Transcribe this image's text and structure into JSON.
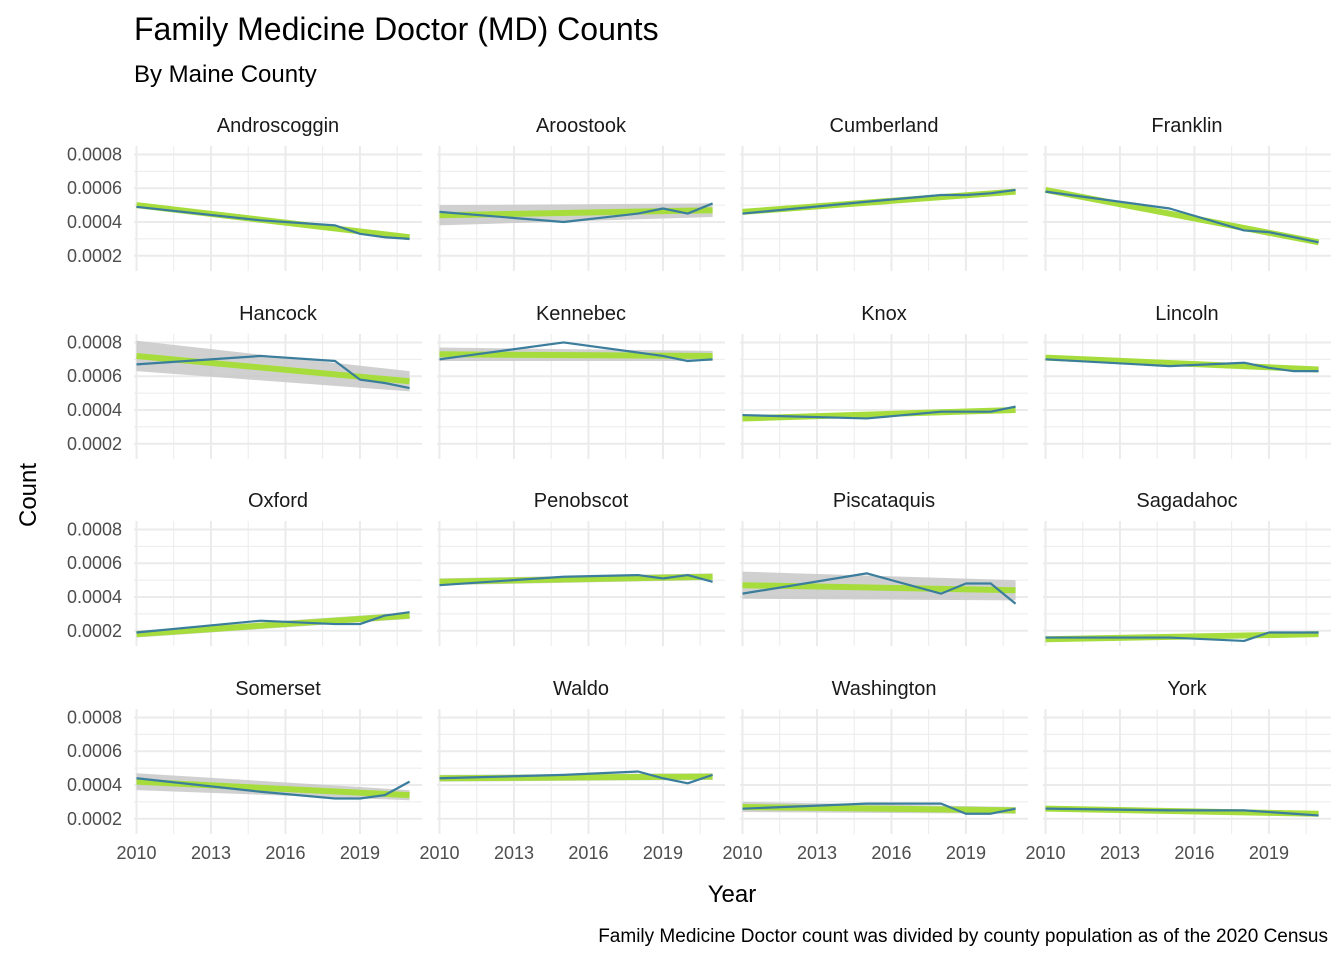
{
  "chart_data": {
    "type": "line",
    "title": "Family Medicine Doctor (MD) Counts",
    "subtitle": "By Maine County",
    "xlabel": "Year",
    "ylabel": "Count",
    "caption": "Family Medicine Doctor count was divided by county population as of the 2020 Census",
    "x_ticks": [
      "2010",
      "2013",
      "2016",
      "2019"
    ],
    "y_ticks": [
      "0.0002",
      "0.0004",
      "0.0006",
      "0.0008"
    ],
    "xlim": [
      2009.9,
      2021.5
    ],
    "ylim": [
      0.00011,
      0.00085
    ],
    "grid": true,
    "colors": {
      "line": "#3b7d9c",
      "trend": "#a6dd3c",
      "band": "#c8c8c8",
      "grid": "#ebebeb"
    },
    "years": [
      2010,
      2015,
      2018,
      2019,
      2020,
      2021
    ],
    "panels": [
      {
        "name": "Androscoggin",
        "values": [
          0.00049,
          0.00041,
          0.00038,
          0.00033,
          0.00031,
          0.0003
        ],
        "trend": [
          0.0005,
          0.00031
        ],
        "band": [
          1e-05,
          1e-05
        ]
      },
      {
        "name": "Aroostook",
        "values": [
          0.00046,
          0.0004,
          0.00045,
          0.00048,
          0.00045,
          0.00051
        ],
        "trend": [
          0.00044,
          0.00047
        ],
        "band": [
          6e-05,
          4e-05
        ]
      },
      {
        "name": "Cumberland",
        "values": [
          0.00045,
          0.00052,
          0.00056,
          0.00056,
          0.00057,
          0.00059
        ],
        "trend": [
          0.00046,
          0.00058
        ],
        "band": [
          1e-05,
          1e-05
        ]
      },
      {
        "name": "Franklin",
        "values": [
          0.00058,
          0.00048,
          0.00035,
          0.00034,
          0.00031,
          0.00028
        ],
        "trend": [
          0.00059,
          0.00028
        ],
        "band": [
          1e-05,
          1e-05
        ]
      },
      {
        "name": "Hancock",
        "values": [
          0.00067,
          0.00072,
          0.00069,
          0.00058,
          0.00056,
          0.00053
        ],
        "trend": [
          0.00072,
          0.00057
        ],
        "band": [
          9e-05,
          6e-05
        ]
      },
      {
        "name": "Kennebec",
        "values": [
          0.0007,
          0.0008,
          0.00074,
          0.00072,
          0.00069,
          0.0007
        ],
        "trend": [
          0.00073,
          0.00072
        ],
        "band": [
          4e-05,
          3e-05
        ]
      },
      {
        "name": "Knox",
        "values": [
          0.00037,
          0.00035,
          0.00039,
          0.00039,
          0.00039,
          0.00042
        ],
        "trend": [
          0.00035,
          0.0004
        ],
        "band": [
          1e-05,
          1e-05
        ]
      },
      {
        "name": "Lincoln",
        "values": [
          0.0007,
          0.00066,
          0.00068,
          0.00065,
          0.00063,
          0.00063
        ],
        "trend": [
          0.00071,
          0.00064
        ],
        "band": [
          1e-05,
          1e-05
        ]
      },
      {
        "name": "Oxford",
        "values": [
          0.00019,
          0.00026,
          0.00024,
          0.00024,
          0.00029,
          0.00031
        ],
        "trend": [
          0.00018,
          0.00029
        ],
        "band": [
          2e-05,
          2e-05
        ]
      },
      {
        "name": "Penobscot",
        "values": [
          0.00047,
          0.00052,
          0.00053,
          0.00051,
          0.00053,
          0.00049
        ],
        "trend": [
          0.00049,
          0.00052
        ],
        "band": [
          2e-05,
          2e-05
        ]
      },
      {
        "name": "Piscataquis",
        "values": [
          0.00042,
          0.00054,
          0.00042,
          0.00048,
          0.00048,
          0.00036
        ],
        "trend": [
          0.00047,
          0.00044
        ],
        "band": [
          8e-05,
          6e-05
        ]
      },
      {
        "name": "Sagadahoc",
        "values": [
          0.00016,
          0.00016,
          0.00014,
          0.00019,
          0.00019,
          0.00019
        ],
        "trend": [
          0.00015,
          0.00018
        ],
        "band": [
          1e-05,
          1e-05
        ]
      },
      {
        "name": "Somerset",
        "values": [
          0.00044,
          0.00036,
          0.00032,
          0.00032,
          0.00034,
          0.00042
        ],
        "trend": [
          0.00042,
          0.00034
        ],
        "band": [
          5e-05,
          3e-05
        ]
      },
      {
        "name": "Waldo",
        "values": [
          0.00044,
          0.00046,
          0.00048,
          0.00044,
          0.00041,
          0.00046
        ],
        "trend": [
          0.00044,
          0.00045
        ],
        "band": [
          2e-05,
          2e-05
        ]
      },
      {
        "name": "Washington",
        "values": [
          0.00026,
          0.00029,
          0.00029,
          0.00023,
          0.00023,
          0.00026
        ],
        "trend": [
          0.00027,
          0.00025
        ],
        "band": [
          3e-05,
          2e-05
        ]
      },
      {
        "name": "York",
        "values": [
          0.00026,
          0.00025,
          0.00025,
          0.00024,
          0.00023,
          0.00022
        ],
        "trend": [
          0.00026,
          0.00023
        ],
        "band": [
          1e-05,
          1e-05
        ]
      }
    ]
  }
}
